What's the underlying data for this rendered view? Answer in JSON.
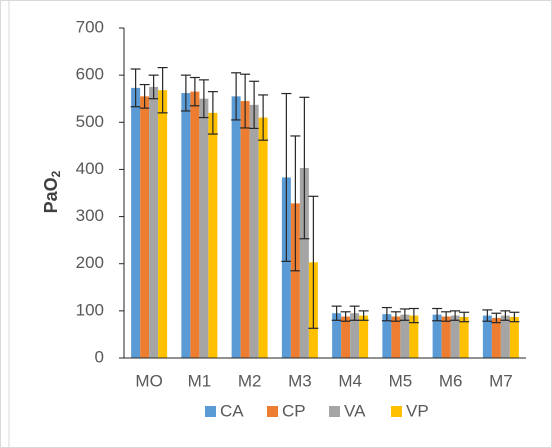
{
  "chart_data": {
    "type": "bar",
    "y_label": "PaO",
    "y_label_sub": "2",
    "categories": [
      "MO",
      "M1",
      "M2",
      "M3",
      "M4",
      "M5",
      "M6",
      "M7"
    ],
    "series": [
      {
        "name": "CA",
        "color": "#5b9bd5",
        "values": [
          573,
          562,
          555,
          383,
          95,
          93,
          92,
          90
        ],
        "errors": [
          40,
          38,
          50,
          178,
          15,
          14,
          13,
          12
        ]
      },
      {
        "name": "CP",
        "color": "#ed7d31",
        "values": [
          555,
          565,
          545,
          328,
          88,
          88,
          88,
          85
        ],
        "errors": [
          25,
          30,
          57,
          143,
          10,
          10,
          10,
          10
        ]
      },
      {
        "name": "VA",
        "color": "#a5a5a5",
        "values": [
          575,
          550,
          537,
          403,
          95,
          92,
          90,
          90
        ],
        "errors": [
          25,
          40,
          50,
          150,
          15,
          12,
          10,
          10
        ]
      },
      {
        "name": "VP",
        "color": "#ffc000",
        "values": [
          568,
          520,
          510,
          203,
          90,
          90,
          87,
          87
        ],
        "errors": [
          48,
          45,
          48,
          140,
          10,
          15,
          10,
          10
        ]
      }
    ],
    "ylim": [
      0,
      700
    ],
    "yticks": [
      0,
      100,
      200,
      300,
      400,
      500,
      600,
      700
    ],
    "grid": false
  }
}
